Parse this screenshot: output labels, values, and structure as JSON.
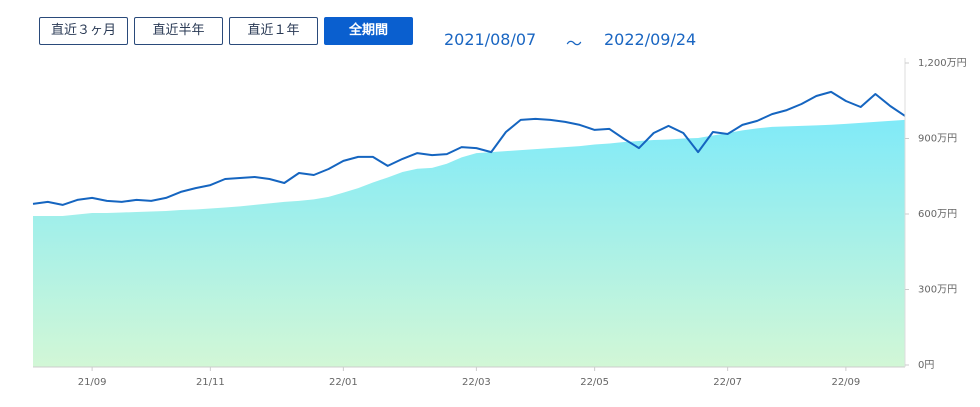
{
  "buttons": [
    "直近３ヶ月",
    "直近半年",
    "直近１年",
    "全期間"
  ],
  "active_button": 3,
  "date_range": {
    "start": "2021/08/07",
    "separator": "～",
    "end": "2022/09/24"
  },
  "chart_data": {
    "type": "line",
    "categories": [
      null,
      null,
      null,
      null,
      "21/09",
      null,
      null,
      null,
      null,
      null,
      null,
      null,
      "21/11",
      null,
      null,
      null,
      null,
      null,
      null,
      null,
      null,
      "22/01",
      null,
      null,
      null,
      null,
      null,
      null,
      null,
      null,
      "22/03",
      null,
      null,
      null,
      null,
      null,
      null,
      null,
      "22/05",
      null,
      null,
      null,
      null,
      null,
      null,
      null,
      null,
      "22/07",
      null,
      null,
      null,
      null,
      null,
      null,
      null,
      "22/09",
      null,
      null,
      null,
      null
    ],
    "series": [
      {
        "type": "area",
        "color": "#80eaf8",
        "color_bottom": "#d2f7d6",
        "values": [
          592,
          592,
          592,
          598,
          604,
          604,
          606,
          608,
          610,
          612,
          616,
          618,
          622,
          626,
          630,
          636,
          642,
          648,
          652,
          658,
          668,
          685,
          703,
          725,
          745,
          767,
          780,
          783,
          800,
          825,
          842,
          846,
          850,
          854,
          858,
          862,
          866,
          870,
          876,
          880,
          886,
          890,
          894,
          896,
          900,
          902,
          912,
          922,
          932,
          940,
          946,
          948,
          950,
          952,
          955,
          958,
          962,
          966,
          970,
          974
        ]
      },
      {
        "type": "line",
        "color": "#1565c0",
        "values": [
          640,
          648,
          636,
          656,
          664,
          652,
          648,
          656,
          652,
          664,
          688,
          703,
          715,
          739,
          743,
          747,
          739,
          723,
          763,
          755,
          779,
          811,
          827,
          827,
          791,
          819,
          842,
          834,
          838,
          866,
          862,
          846,
          926,
          974,
          978,
          974,
          966,
          954,
          934,
          938,
          898,
          862,
          922,
          950,
          922,
          846,
          926,
          918,
          954,
          970,
          997,
          1013,
          1037,
          1069,
          1085,
          1049,
          1025,
          1077,
          1029,
          990
        ]
      }
    ],
    "ylim": [
      0,
      1200
    ],
    "yticks": [
      {
        "value": 0,
        "label": "0円"
      },
      {
        "value": 300,
        "label": "300万円"
      },
      {
        "value": 600,
        "label": "600万円"
      },
      {
        "value": 900,
        "label": "900万円"
      },
      {
        "value": 1200,
        "label": "1,200万円"
      }
    ],
    "grid": false
  }
}
